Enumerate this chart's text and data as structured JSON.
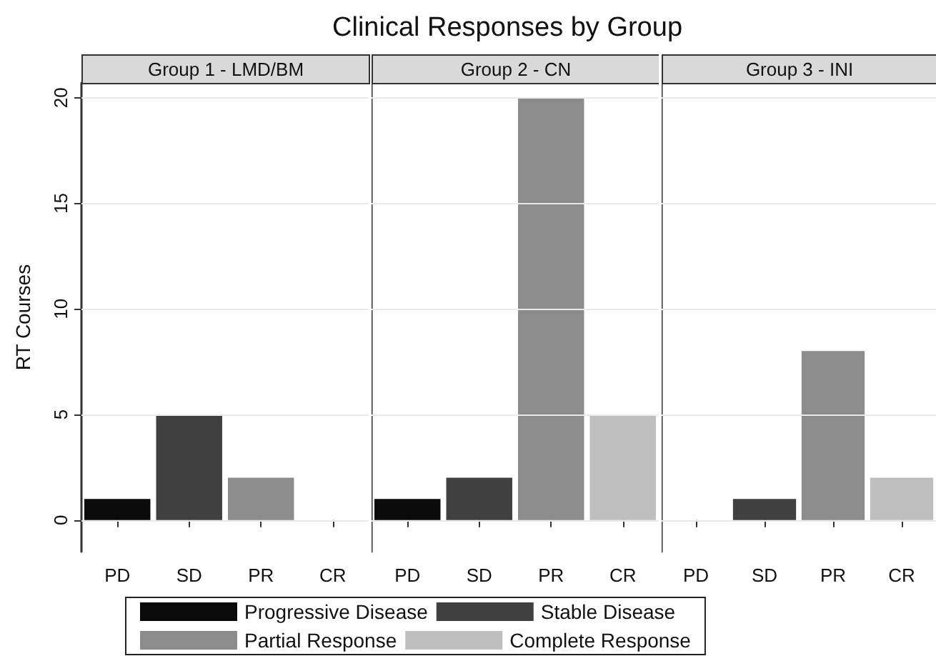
{
  "chart_data": [
    {
      "type": "other",
      "title": "Clinical Responses by Group"
    },
    {
      "type": "bar",
      "subtitle": "Group 1 - LMD/BM",
      "ylabel": "RT Courses",
      "categories": [
        "PD",
        "SD",
        "PR",
        "CR"
      ],
      "series": [
        {
          "name": "Progressive Disease",
          "color": "#0a0a0a",
          "values": [
            1,
            null,
            null,
            null
          ]
        },
        {
          "name": "Stable Disease",
          "color": "#404040",
          "values": [
            null,
            5,
            null,
            null
          ]
        },
        {
          "name": "Partial Response",
          "color": "#8c8c8c",
          "values": [
            null,
            null,
            2,
            null
          ]
        },
        {
          "name": "Complete Response",
          "color": "#bfbfbf",
          "values": [
            null,
            null,
            null,
            0
          ]
        }
      ],
      "ylim": [
        -1.5,
        20.7
      ],
      "yticks": [
        0,
        5,
        10,
        15,
        20
      ],
      "grid": "y",
      "legend": "bottom"
    },
    {
      "type": "bar",
      "subtitle": "Group 2 - CN",
      "categories": [
        "PD",
        "SD",
        "PR",
        "CR"
      ],
      "series": [
        {
          "color": "#0a0a0a",
          "values": [
            1,
            null,
            null,
            null
          ]
        },
        {
          "color": "#404040",
          "values": [
            null,
            2,
            null,
            null
          ]
        },
        {
          "color": "#8c8c8c",
          "values": [
            null,
            null,
            20,
            null
          ]
        },
        {
          "color": "#bfbfbf",
          "values": [
            null,
            null,
            null,
            5
          ]
        }
      ],
      "ylim": [
        -1.5,
        20.7
      ],
      "yticks": [
        0,
        5,
        10,
        15,
        20
      ],
      "grid": "y",
      "tick_labels": "x"
    },
    {
      "type": "bar",
      "subtitle": "Group 3 - INI",
      "categories": [
        "PD",
        "SD",
        "PR",
        "CR"
      ],
      "series": [
        {
          "color": "#0a0a0a",
          "values": [
            0,
            null,
            null,
            null
          ]
        },
        {
          "color": "#404040",
          "values": [
            null,
            1,
            null,
            null
          ]
        },
        {
          "color": "#8c8c8c",
          "values": [
            null,
            null,
            8,
            null
          ]
        },
        {
          "color": "#bfbfbf",
          "values": [
            null,
            null,
            null,
            2
          ]
        }
      ],
      "ylim": [
        -1.5,
        20.7
      ],
      "yticks": [
        0,
        5,
        10,
        15,
        20
      ],
      "grid": "y",
      "tick_labels": "x"
    }
  ]
}
